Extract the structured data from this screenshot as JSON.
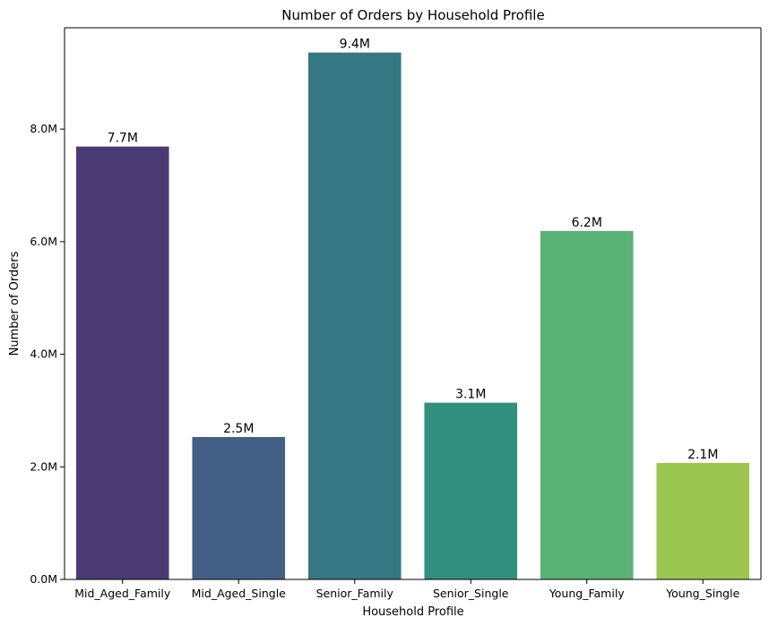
{
  "chart_data": {
    "type": "bar",
    "title": "Number of Orders by Household Profile",
    "xlabel": "Household Profile",
    "ylabel": "Number of Orders",
    "categories": [
      "Mid_Aged_Family",
      "Mid_Aged_Single",
      "Senior_Family",
      "Senior_Single",
      "Young_Family",
      "Young_Single"
    ],
    "values": [
      7690000,
      2530000,
      9360000,
      3140000,
      6190000,
      2070000
    ],
    "value_labels": [
      "7.7M",
      "2.5M",
      "9.4M",
      "3.1M",
      "6.2M",
      "2.1M"
    ],
    "bar_colors": [
      "#4b3b75",
      "#435f85",
      "#357782",
      "#31907d",
      "#5ab274",
      "#9bc64f"
    ],
    "ylim": [
      0,
      9800000
    ],
    "yticks": [
      0,
      2000000,
      4000000,
      6000000,
      8000000
    ],
    "ytick_labels": [
      "0.0M",
      "2.0M",
      "4.0M",
      "6.0M",
      "8.0M"
    ],
    "grid": false,
    "legend": "none"
  }
}
